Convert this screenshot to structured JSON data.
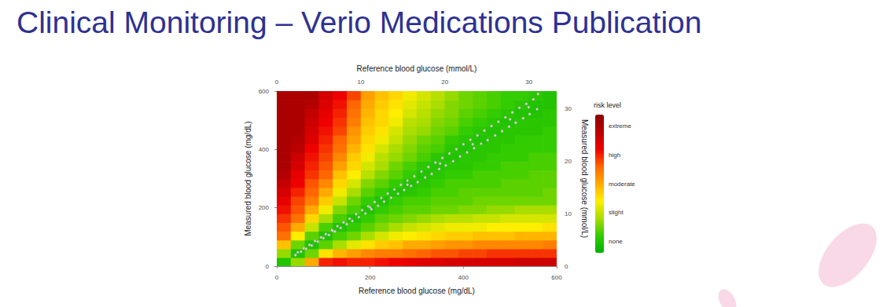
{
  "chart_data": {
    "type": "scatter",
    "title": "Clinical Monitoring – Verio Medications Publication",
    "xlabel": "Reference blood glucose (mg/dL)",
    "ylabel": "Measured blood glucose (mg/dL)",
    "x2label": "Reference blood glucose (mmol/L)",
    "y2label": "Measured blood glucose (mmol/L)",
    "xlim": [
      0,
      600
    ],
    "ylim": [
      0,
      600
    ],
    "xticks": [
      0,
      200,
      400,
      600
    ],
    "yticks": [
      0,
      200,
      400,
      600
    ],
    "x2lim": [
      0,
      33.3
    ],
    "x2ticks": [
      0,
      10,
      20,
      30
    ],
    "y2lim": [
      0,
      33.3
    ],
    "y2ticks": [
      0,
      10,
      20,
      30
    ],
    "grid": false,
    "marker": "circle",
    "color": "#e3e3e3",
    "x": [
      40,
      45,
      52,
      58,
      63,
      70,
      75,
      82,
      88,
      95,
      100,
      105,
      112,
      118,
      120,
      125,
      130,
      137,
      143,
      150,
      156,
      162,
      170,
      176,
      183,
      190,
      196,
      200,
      203,
      210,
      217,
      224,
      230,
      238,
      245,
      252,
      260,
      266,
      273,
      280,
      280,
      288,
      295,
      302,
      310,
      318,
      325,
      332,
      340,
      348,
      350,
      355,
      362,
      370,
      378,
      385,
      393,
      400,
      408,
      415,
      420,
      423,
      430,
      438,
      445,
      452,
      460,
      468,
      475,
      483,
      490,
      498,
      500,
      505,
      512,
      520,
      528,
      535,
      540,
      542,
      550,
      558,
      560
    ],
    "values": [
      38,
      48,
      50,
      61,
      60,
      73,
      71,
      86,
      84,
      99,
      96,
      110,
      107,
      124,
      121,
      119,
      137,
      131,
      150,
      144,
      163,
      155,
      178,
      168,
      192,
      181,
      205,
      202,
      195,
      220,
      207,
      234,
      221,
      249,
      235,
      263,
      248,
      279,
      261,
      293,
      279,
      275,
      308,
      288,
      324,
      304,
      340,
      316,
      355,
      333,
      352,
      371,
      345,
      386,
      360,
      401,
      376,
      418,
      390,
      433,
      418,
      404,
      448,
      420,
      465,
      432,
      480,
      448,
      495,
      463,
      510,
      478,
      503,
      527,
      492,
      543,
      507,
      556,
      545,
      521,
      572,
      538,
      590
    ],
    "heatmap": {
      "x": [
        15,
        45,
        75,
        105,
        135,
        165,
        195,
        225,
        255,
        285,
        315,
        345,
        375,
        405,
        435,
        465,
        495,
        525,
        555,
        585
      ],
      "y": [
        15,
        45,
        75,
        105,
        135,
        165,
        195,
        225,
        255,
        285,
        315,
        345,
        375,
        405,
        435,
        465,
        495,
        525,
        555,
        585
      ],
      "values": [
        [
          0,
          0.7,
          1.8,
          2.5,
          2.7,
          2.9,
          3.1,
          3.3,
          3.5,
          3.7,
          3.9,
          4,
          4,
          4,
          4,
          4,
          4,
          4,
          4,
          4
        ],
        [
          0.7,
          0,
          0.5,
          1.4,
          2.0,
          2.5,
          2.7,
          2.8,
          3.0,
          3.2,
          3.3,
          3.5,
          3.6,
          3.8,
          3.9,
          4,
          4,
          4,
          4,
          4
        ],
        [
          2.0,
          0.5,
          0,
          0.4,
          1.0,
          1.6,
          2.0,
          2.4,
          2.6,
          2.7,
          2.9,
          3.0,
          3.1,
          3.2,
          3.4,
          3.5,
          3.6,
          3.7,
          3.9,
          4.0
        ],
        [
          3.0,
          1.5,
          0.4,
          0,
          0.3,
          0.8,
          1.3,
          1.7,
          2.0,
          2.3,
          2.6,
          2.7,
          2.8,
          2.9,
          3.0,
          3.1,
          3.2,
          3.3,
          3.4,
          3.5
        ],
        [
          3.1,
          1.9,
          0.8,
          0.3,
          0,
          0.3,
          0.6,
          1.0,
          1.3,
          1.6,
          1.8,
          2.1,
          2.3,
          2.5,
          2.6,
          2.8,
          2.9,
          3.0,
          3.1,
          3.2
        ],
        [
          3.0,
          2.1,
          1.2,
          0.5,
          0.2,
          0,
          0.3,
          0.5,
          0.8,
          1.1,
          1.4,
          1.6,
          1.7,
          1.9,
          2.1,
          2.2,
          2.4,
          2.5,
          2.6,
          2.8
        ],
        [
          3.0,
          2.3,
          1.5,
          0.8,
          0.4,
          0.2,
          0,
          0.2,
          0.4,
          0.6,
          0.9,
          1.1,
          1.3,
          1.5,
          1.6,
          1.7,
          1.8,
          1.9,
          2.0,
          2.1
        ],
        [
          3.1,
          2.4,
          1.7,
          1.1,
          0.6,
          0.4,
          0.2,
          0,
          0.2,
          0.4,
          0.6,
          0.8,
          0.9,
          1.1,
          1.3,
          1.5,
          1.6,
          1.6,
          1.7,
          1.8
        ],
        [
          3.2,
          2.4,
          1.8,
          1.3,
          0.8,
          0.5,
          0.3,
          0.2,
          0,
          0.2,
          0.4,
          0.5,
          0.7,
          0.8,
          1.0,
          1.1,
          1.3,
          1.4,
          1.5,
          1.6
        ],
        [
          3.3,
          2.5,
          2.0,
          1.4,
          1.0,
          0.6,
          0.4,
          0.3,
          0.1,
          0,
          0.2,
          0.3,
          0.5,
          0.6,
          0.7,
          0.8,
          0.9,
          1.1,
          1.2,
          1.3
        ],
        [
          3.4,
          2.6,
          2.0,
          1.5,
          1.1,
          0.7,
          0.4,
          0.3,
          0.2,
          0.1,
          0,
          0.1,
          0.3,
          0.4,
          0.5,
          0.7,
          0.8,
          0.9,
          1.0,
          1.1
        ],
        [
          3.4,
          2.7,
          2.1,
          1.6,
          1.2,
          0.8,
          0.5,
          0.4,
          0.3,
          0.2,
          0.1,
          0,
          0.1,
          0.3,
          0.4,
          0.5,
          0.6,
          0.7,
          0.8,
          0.9
        ],
        [
          3.5,
          2.7,
          2.2,
          1.7,
          1.3,
          0.9,
          0.5,
          0.4,
          0.3,
          0.3,
          0.2,
          0.1,
          0,
          0.1,
          0.2,
          0.4,
          0.5,
          0.6,
          0.6,
          0.7
        ],
        [
          3.5,
          2.8,
          2.2,
          1.7,
          1.3,
          0.9,
          0.6,
          0.4,
          0.4,
          0.3,
          0.2,
          0.1,
          0.1,
          0,
          0.1,
          0.2,
          0.3,
          0.4,
          0.5,
          0.5
        ],
        [
          3.5,
          2.8,
          2.3,
          1.8,
          1.3,
          1.0,
          0.6,
          0.5,
          0.4,
          0.3,
          0.3,
          0.2,
          0.1,
          0.1,
          0,
          0.1,
          0.2,
          0.3,
          0.4,
          0.4
        ],
        [
          3.5,
          2.9,
          2.3,
          1.8,
          1.4,
          1.0,
          0.7,
          0.5,
          0.4,
          0.3,
          0.3,
          0.2,
          0.2,
          0.1,
          0.1,
          0,
          0.1,
          0.2,
          0.3,
          0.3
        ],
        [
          3.5,
          2.9,
          2.3,
          1.8,
          1.4,
          1.1,
          0.7,
          0.5,
          0.4,
          0.4,
          0.3,
          0.3,
          0.2,
          0.2,
          0.1,
          0.1,
          0,
          0.1,
          0.2,
          0.2
        ],
        [
          3.6,
          2.9,
          2.3,
          1.9,
          1.4,
          1.1,
          0.8,
          0.5,
          0.4,
          0.4,
          0.3,
          0.3,
          0.2,
          0.2,
          0.2,
          0.1,
          0.1,
          0,
          0.1,
          0.2
        ],
        [
          3.6,
          2.9,
          2.3,
          1.9,
          1.4,
          1.1,
          0.8,
          0.5,
          0.4,
          0.4,
          0.4,
          0.3,
          0.3,
          0.2,
          0.2,
          0.1,
          0.1,
          0,
          0,
          0.1
        ],
        [
          3.6,
          2.9,
          2.4,
          1.9,
          1.5,
          1.1,
          0.8,
          0.5,
          0.5,
          0.4,
          0.4,
          0.3,
          0.3,
          0.2,
          0.2,
          0.2,
          0.1,
          0.1,
          0,
          0
        ]
      ]
    },
    "colorbar": {
      "title": "risk level",
      "lim": [
        -0.4,
        4.4
      ],
      "ticks": [
        {
          "value": 4,
          "label": "extreme"
        },
        {
          "value": 3,
          "label": "high"
        },
        {
          "value": 2,
          "label": "moderate"
        },
        {
          "value": 1,
          "label": "slight"
        },
        {
          "value": 0,
          "label": "none"
        }
      ],
      "colors": [
        "#00b000",
        "#33cc00",
        "#aadd00",
        "#ffee00",
        "#ffaa00",
        "#ff6600",
        "#ee0000",
        "#bb0000",
        "#8b0000"
      ]
    }
  }
}
